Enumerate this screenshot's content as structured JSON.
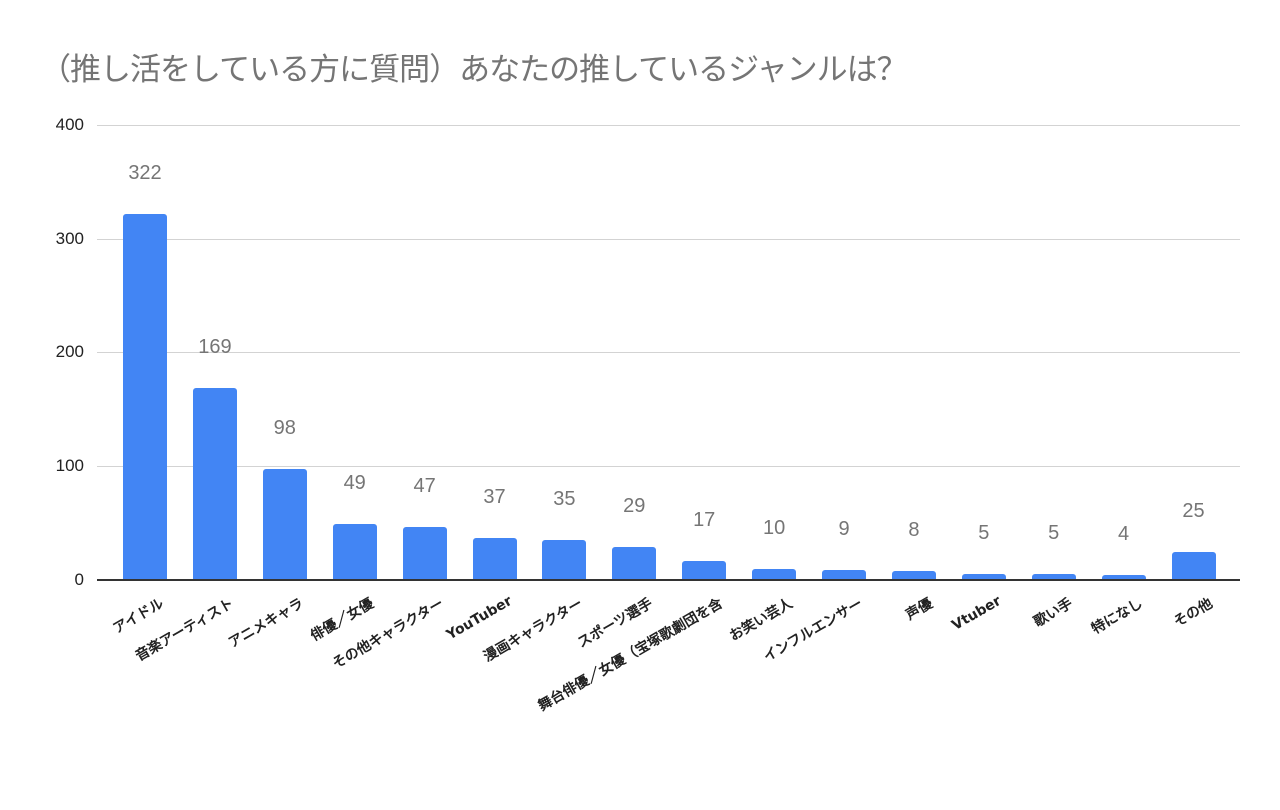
{
  "chart_data": {
    "type": "bar",
    "title": "（推し活をしている方に質問）あなたの推しているジャンルは？",
    "xlabel": "",
    "ylabel": "",
    "ylim": [
      0,
      400
    ],
    "yticks": [
      "0",
      "100",
      "200",
      "300",
      "400"
    ],
    "grid": true,
    "legend": "none",
    "bar_color": "#4285f4",
    "categories": [
      "アイドル",
      "音楽アーティスト",
      "アニメキャラ",
      "俳優／女優",
      "その他キャラクター",
      "YouTuber",
      "漫画キャラクター",
      "スポーツ選手",
      "舞台俳優／女優（宝塚歌劇団を含",
      "お笑い芸人",
      "インフルエンサー",
      "声優",
      "Vtuber",
      "歌い手",
      "特になし",
      "その他"
    ],
    "values": [
      322,
      169,
      98,
      49,
      47,
      37,
      35,
      29,
      17,
      10,
      9,
      8,
      5,
      5,
      4,
      25
    ],
    "value_labels": [
      "322",
      "169",
      "98",
      "49",
      "47",
      "37",
      "35",
      "29",
      "17",
      "10",
      "9",
      "8",
      "5",
      "5",
      "4",
      "25"
    ]
  }
}
